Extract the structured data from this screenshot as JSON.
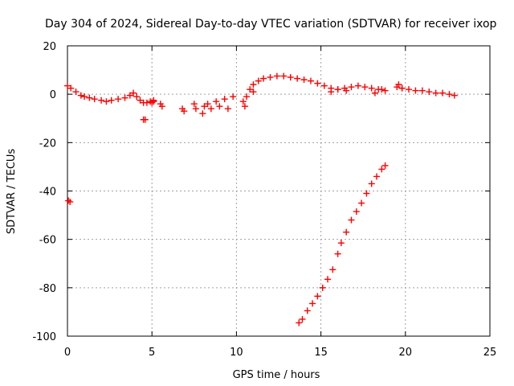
{
  "chart_data": {
    "type": "scatter",
    "title": "Day 304 of 2024, Sidereal Day-to-day VTEC variation (SDTVAR) for receiver ixop",
    "xlabel": "GPS time / hours",
    "ylabel": "SDTVAR / TECUs",
    "xlim": [
      0,
      25
    ],
    "ylim": [
      -100,
      20
    ],
    "x_ticks": [
      0,
      5,
      10,
      15,
      20,
      25
    ],
    "x_tick_labels": [
      "0",
      "5",
      "10",
      "15",
      "20",
      "25"
    ],
    "y_ticks": [
      -100,
      -80,
      -60,
      -40,
      -20,
      0,
      20
    ],
    "y_tick_labels": [
      "-100",
      "-80",
      "-60",
      "-40",
      "-20",
      "0",
      "20"
    ],
    "grid": true,
    "marker": "+",
    "color": "#ff0000",
    "series": [
      {
        "name": "main track",
        "x": [
          0.0,
          0.2,
          0.5,
          0.8,
          1.0,
          1.3,
          1.6,
          2.0,
          2.3,
          2.6,
          3.0,
          3.4,
          3.7,
          3.9,
          4.1,
          4.3,
          4.5,
          4.7,
          4.9,
          5.1,
          10.8,
          11.0,
          11.3,
          11.6,
          12.0,
          12.4,
          12.8,
          13.2,
          13.6,
          14.0,
          14.4,
          14.8,
          15.2,
          15.6,
          16.0,
          16.4,
          16.8,
          17.2,
          17.6,
          18.0,
          18.4,
          18.8,
          19.5,
          19.8,
          20.2,
          20.6,
          21.0,
          21.4,
          21.8,
          22.2,
          22.6,
          22.9
        ],
        "y": [
          3.5,
          2.5,
          1.0,
          -0.5,
          -1.0,
          -1.5,
          -2.0,
          -2.5,
          -3.0,
          -2.5,
          -2.0,
          -1.5,
          -0.5,
          0.5,
          -1.0,
          -2.5,
          -3.5,
          -3.5,
          -3.0,
          -3.0,
          2.0,
          4.0,
          5.5,
          6.5,
          7.0,
          7.5,
          7.5,
          7.0,
          6.5,
          6.0,
          5.5,
          4.5,
          3.5,
          2.5,
          2.0,
          2.5,
          3.0,
          3.5,
          3.0,
          2.5,
          2.0,
          1.5,
          3.0,
          2.5,
          2.0,
          1.5,
          1.5,
          1.0,
          0.5,
          0.5,
          0.0,
          -0.5
        ]
      },
      {
        "name": "scattered points",
        "x": [
          0.05,
          0.15,
          4.5,
          4.6,
          5.0,
          5.1,
          5.5,
          5.6,
          6.8,
          6.9,
          7.5,
          7.6,
          8.0,
          8.1,
          8.3,
          8.5,
          8.8,
          9.0,
          9.3,
          9.5,
          9.8,
          10.4,
          10.5,
          10.6,
          11.0,
          15.6,
          16.0,
          16.5,
          18.2,
          18.6,
          19.6,
          19.8
        ],
        "y": [
          -44.0,
          -44.5,
          -10.5,
          -10.5,
          -3.5,
          -2.5,
          -4.0,
          -5.0,
          -6.0,
          -7.0,
          -4.0,
          -6.0,
          -8.0,
          -5.0,
          -4.0,
          -6.0,
          -3.0,
          -5.0,
          -2.0,
          -6.0,
          -1.0,
          -3.0,
          -5.0,
          -1.0,
          1.0,
          1.0,
          2.0,
          1.5,
          0.5,
          2.0,
          4.0,
          2.5
        ]
      },
      {
        "name": "diagonal track",
        "x": [
          13.7,
          13.9,
          14.2,
          14.5,
          14.8,
          15.1,
          15.4,
          15.7,
          16.0,
          16.2,
          16.5,
          16.8,
          17.1,
          17.4,
          17.7,
          18.0,
          18.3,
          18.6,
          18.8
        ],
        "y": [
          -94.5,
          -93.0,
          -89.5,
          -86.5,
          -83.5,
          -80.0,
          -76.5,
          -72.5,
          -66.0,
          -61.5,
          -57.0,
          -52.0,
          -48.5,
          -45.0,
          -41.0,
          -37.0,
          -34.0,
          -31.0,
          -29.5
        ]
      }
    ]
  }
}
